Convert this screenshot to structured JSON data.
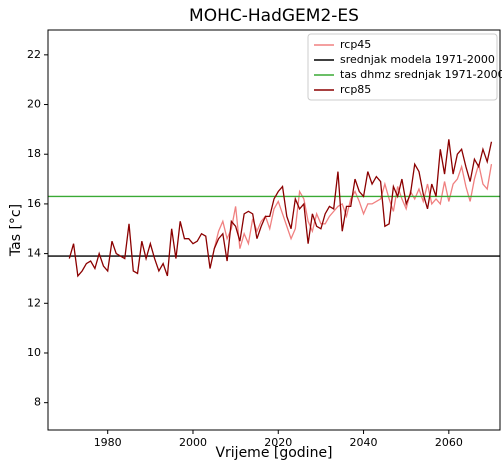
{
  "chart_data": {
    "type": "line",
    "title": "MOHC-HadGEM2-ES",
    "xlabel": "Vrijeme [godine]",
    "ylabel": "Tas [°c]",
    "xlim": [
      1966,
      2072
    ],
    "ylim": [
      6.9,
      23.0
    ],
    "xticks": [
      1980,
      2000,
      2020,
      2040,
      2060
    ],
    "yticks": [
      8,
      10,
      12,
      14,
      16,
      18,
      20,
      22
    ],
    "legend": "upper right",
    "series": [
      {
        "name": "rcp45",
        "color": "#f08080",
        "x": [
          2005,
          2006,
          2007,
          2008,
          2009,
          2010,
          2011,
          2012,
          2013,
          2014,
          2015,
          2016,
          2017,
          2018,
          2019,
          2020,
          2021,
          2022,
          2023,
          2024,
          2025,
          2026,
          2027,
          2028,
          2029,
          2030,
          2031,
          2032,
          2033,
          2034,
          2035,
          2036,
          2037,
          2038,
          2039,
          2040,
          2041,
          2042,
          2043,
          2044,
          2045,
          2046,
          2047,
          2048,
          2049,
          2050,
          2051,
          2052,
          2053,
          2054,
          2055,
          2056,
          2057,
          2058,
          2059,
          2060,
          2061,
          2062,
          2063,
          2064,
          2065,
          2066,
          2067,
          2068,
          2069,
          2070
        ],
        "values": [
          14.2,
          14.9,
          15.3,
          14.6,
          15.0,
          15.9,
          14.2,
          14.8,
          14.4,
          15.4,
          14.9,
          15.3,
          15.5,
          15.0,
          15.8,
          16.1,
          15.6,
          15.1,
          14.6,
          15.0,
          16.5,
          16.2,
          15.3,
          14.9,
          15.6,
          15.2,
          15.2,
          15.5,
          15.7,
          15.9,
          16.0,
          15.5,
          16.2,
          16.5,
          16.1,
          15.6,
          16.0,
          16.0,
          16.1,
          16.2,
          16.8,
          16.2,
          15.7,
          16.7,
          16.2,
          15.8,
          16.5,
          16.2,
          16.6,
          16.1,
          16.8,
          16.0,
          16.2,
          16.0,
          16.9,
          16.1,
          16.8,
          17.0,
          17.5,
          16.7,
          16.1,
          17.0,
          17.6,
          16.8,
          16.6,
          17.6
        ]
      },
      {
        "name": "srednjak modela 1971-2000",
        "color": "#000000",
        "hline": 13.9
      },
      {
        "name": "tas dhmz srednjak 1971-2000",
        "color": "#3aaa35",
        "hline": 16.3
      },
      {
        "name": "rcp85",
        "color": "#8b0000",
        "x": [
          1971,
          1972,
          1973,
          1974,
          1975,
          1976,
          1977,
          1978,
          1979,
          1980,
          1981,
          1982,
          1983,
          1984,
          1985,
          1986,
          1987,
          1988,
          1989,
          1990,
          1991,
          1992,
          1993,
          1994,
          1995,
          1996,
          1997,
          1998,
          1999,
          2000,
          2001,
          2002,
          2003,
          2004,
          2005,
          2006,
          2007,
          2008,
          2009,
          2010,
          2011,
          2012,
          2013,
          2014,
          2015,
          2016,
          2017,
          2018,
          2019,
          2020,
          2021,
          2022,
          2023,
          2024,
          2025,
          2026,
          2027,
          2028,
          2029,
          2030,
          2031,
          2032,
          2033,
          2034,
          2035,
          2036,
          2037,
          2038,
          2039,
          2040,
          2041,
          2042,
          2043,
          2044,
          2045,
          2046,
          2047,
          2048,
          2049,
          2050,
          2051,
          2052,
          2053,
          2054,
          2055,
          2056,
          2057,
          2058,
          2059,
          2060,
          2061,
          2062,
          2063,
          2064,
          2065,
          2066,
          2067,
          2068,
          2069,
          2070
        ],
        "values": [
          13.8,
          14.4,
          13.1,
          13.3,
          13.6,
          13.7,
          13.4,
          14.0,
          13.5,
          13.3,
          14.5,
          14.0,
          13.9,
          13.8,
          15.2,
          13.3,
          13.2,
          14.5,
          13.8,
          14.4,
          13.8,
          13.3,
          13.6,
          13.1,
          15.0,
          13.8,
          15.3,
          14.6,
          14.6,
          14.4,
          14.5,
          14.8,
          14.7,
          13.4,
          14.2,
          14.6,
          14.8,
          13.7,
          15.3,
          15.1,
          14.5,
          15.6,
          15.7,
          15.6,
          14.6,
          15.1,
          15.5,
          15.5,
          16.2,
          16.5,
          16.7,
          15.5,
          15.0,
          16.2,
          15.8,
          16.0,
          14.4,
          15.6,
          15.1,
          15.0,
          15.6,
          15.9,
          15.8,
          17.3,
          14.9,
          15.9,
          15.9,
          17.0,
          16.5,
          16.3,
          17.3,
          16.8,
          17.1,
          16.9,
          15.1,
          15.2,
          16.7,
          16.3,
          17.0,
          16.0,
          16.4,
          17.6,
          17.3,
          16.4,
          15.8,
          16.8,
          16.3,
          18.2,
          17.2,
          18.6,
          17.2,
          18.0,
          18.2,
          17.5,
          16.9,
          17.8,
          17.5,
          18.2,
          17.7,
          18.5
        ]
      }
    ]
  }
}
